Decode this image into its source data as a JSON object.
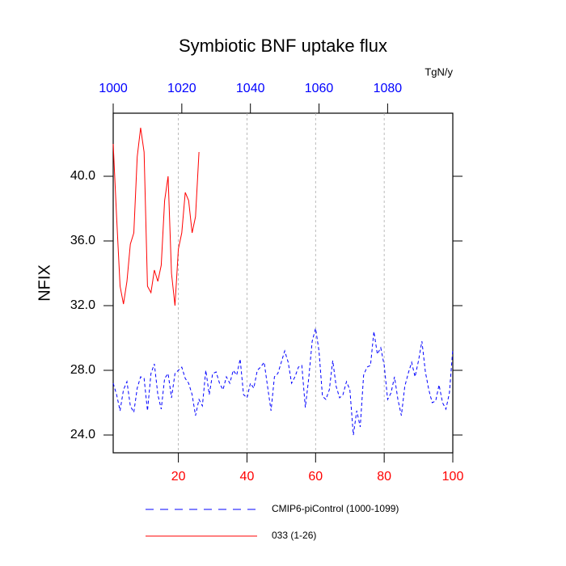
{
  "chart_data": {
    "type": "line",
    "title": "Symbiotic BNF uptake flux",
    "ylabel": "NFIX",
    "x2label": "TgN/y",
    "xlim": [
      1,
      100
    ],
    "xticks": [
      20,
      40,
      60,
      80,
      100
    ],
    "x2lim": [
      1000,
      1099
    ],
    "x2ticks": [
      1000,
      1020,
      1040,
      1060,
      1080
    ],
    "ylim": [
      22.9,
      43.9
    ],
    "yticks": [
      {
        "value": 24,
        "label": "24.0"
      },
      {
        "value": 28,
        "label": "28.0"
      },
      {
        "value": 32,
        "label": "32.0"
      },
      {
        "value": 36,
        "label": "36.0"
      },
      {
        "value": 40,
        "label": "40.0"
      }
    ],
    "grid": true,
    "xtick_color": "#ff0000",
    "x2tick_color": "#0000ff",
    "series": [
      {
        "name": "CMIP6-piControl (1000-1099)",
        "color": "#0000ff",
        "dashed": true,
        "x": [
          1,
          2,
          3,
          4,
          5,
          6,
          7,
          8,
          9,
          10,
          11,
          12,
          13,
          14,
          15,
          16,
          17,
          18,
          19,
          20,
          21,
          22,
          23,
          24,
          25,
          26,
          27,
          28,
          29,
          30,
          31,
          32,
          33,
          34,
          35,
          36,
          37,
          38,
          39,
          40,
          41,
          42,
          43,
          44,
          45,
          46,
          47,
          48,
          49,
          50,
          51,
          52,
          53,
          54,
          55,
          56,
          57,
          58,
          59,
          60,
          61,
          62,
          63,
          64,
          65,
          66,
          67,
          68,
          69,
          70,
          71,
          72,
          73,
          74,
          75,
          76,
          77,
          78,
          79,
          80,
          81,
          82,
          83,
          84,
          85,
          86,
          87,
          88,
          89,
          90,
          91,
          92,
          93,
          94,
          95,
          96,
          97,
          98,
          99,
          100
        ],
        "values": [
          27.2,
          26.5,
          25.5,
          26.8,
          27.3,
          25.8,
          25.4,
          26.9,
          27.6,
          27.5,
          25.5,
          27.8,
          28.4,
          26.5,
          25.6,
          27.5,
          27.8,
          26.3,
          27.8,
          28.0,
          28.2,
          27.5,
          27.2,
          26.5,
          25.2,
          26.2,
          25.8,
          28.0,
          26.5,
          27.8,
          27.9,
          27.2,
          26.8,
          27.6,
          27.2,
          28.0,
          27.7,
          28.7,
          26.5,
          26.3,
          27.2,
          26.9,
          28.0,
          28.2,
          28.5,
          27.0,
          25.5,
          27.6,
          27.8,
          28.5,
          29.2,
          28.5,
          27.2,
          27.6,
          28.2,
          28.3,
          25.7,
          27.5,
          29.8,
          30.6,
          29.2,
          26.4,
          26.2,
          26.8,
          28.6,
          27.0,
          26.3,
          26.5,
          27.3,
          26.8,
          24.0,
          25.5,
          24.5,
          27.7,
          28.2,
          28.3,
          30.4,
          29.0,
          29.4,
          28.3,
          26.2,
          26.6,
          27.6,
          26.2,
          25.2,
          27.0,
          27.8,
          28.5,
          27.6,
          28.6,
          29.8,
          27.9,
          26.8,
          26.0,
          26.1,
          27.1,
          26.0,
          25.6,
          26.6,
          29.3
        ]
      },
      {
        "name": "033 (1-26)",
        "color": "#ff0000",
        "dashed": false,
        "x": [
          1,
          2,
          3,
          4,
          5,
          6,
          7,
          8,
          9,
          10,
          11,
          12,
          13,
          14,
          15,
          16,
          17,
          18,
          19,
          20,
          21,
          22,
          23,
          24,
          25,
          26
        ],
        "values": [
          42.0,
          37.5,
          33.2,
          32.1,
          33.5,
          35.8,
          36.5,
          41.2,
          43.0,
          41.5,
          33.2,
          32.8,
          34.2,
          33.5,
          34.5,
          38.5,
          40.0,
          34.0,
          32.0,
          35.5,
          36.5,
          39.0,
          38.5,
          36.5,
          37.5,
          41.5
        ]
      }
    ]
  }
}
